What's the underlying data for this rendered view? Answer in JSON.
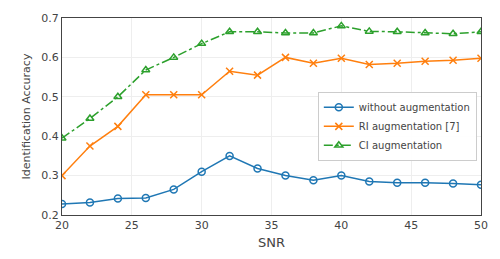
{
  "chart_data": {
    "type": "line",
    "x": [
      20,
      22,
      24,
      26,
      28,
      30,
      32,
      34,
      36,
      38,
      40,
      42,
      44,
      46,
      48,
      50
    ],
    "series": [
      {
        "name": "without augmentation",
        "marker": "circle",
        "line_style": "solid",
        "values": [
          0.228,
          0.232,
          0.242,
          0.243,
          0.265,
          0.31,
          0.35,
          0.318,
          0.3,
          0.288,
          0.3,
          0.285,
          0.282,
          0.282,
          0.28,
          0.277
        ]
      },
      {
        "name": "RI augmentation [7]",
        "marker": "x",
        "line_style": "solid",
        "values": [
          0.3,
          0.375,
          0.425,
          0.505,
          0.505,
          0.505,
          0.565,
          0.555,
          0.6,
          0.585,
          0.598,
          0.582,
          0.585,
          0.59,
          0.593,
          0.598
        ]
      },
      {
        "name": "CI augmentation",
        "marker": "triangle",
        "line_style": "dashdot",
        "values": [
          0.395,
          0.445,
          0.5,
          0.568,
          0.6,
          0.635,
          0.665,
          0.665,
          0.662,
          0.662,
          0.68,
          0.666,
          0.665,
          0.662,
          0.66,
          0.665
        ]
      }
    ],
    "xlabel": "SNR",
    "ylabel": "Identification Accuracy",
    "xlim": [
      20,
      50
    ],
    "ylim": [
      0.2,
      0.7
    ],
    "xticks": [
      20,
      25,
      30,
      35,
      40,
      45,
      50
    ],
    "yticks": [
      0.2,
      0.3,
      0.4,
      0.5,
      0.6,
      0.7
    ],
    "grid": true,
    "legend": "right"
  }
}
